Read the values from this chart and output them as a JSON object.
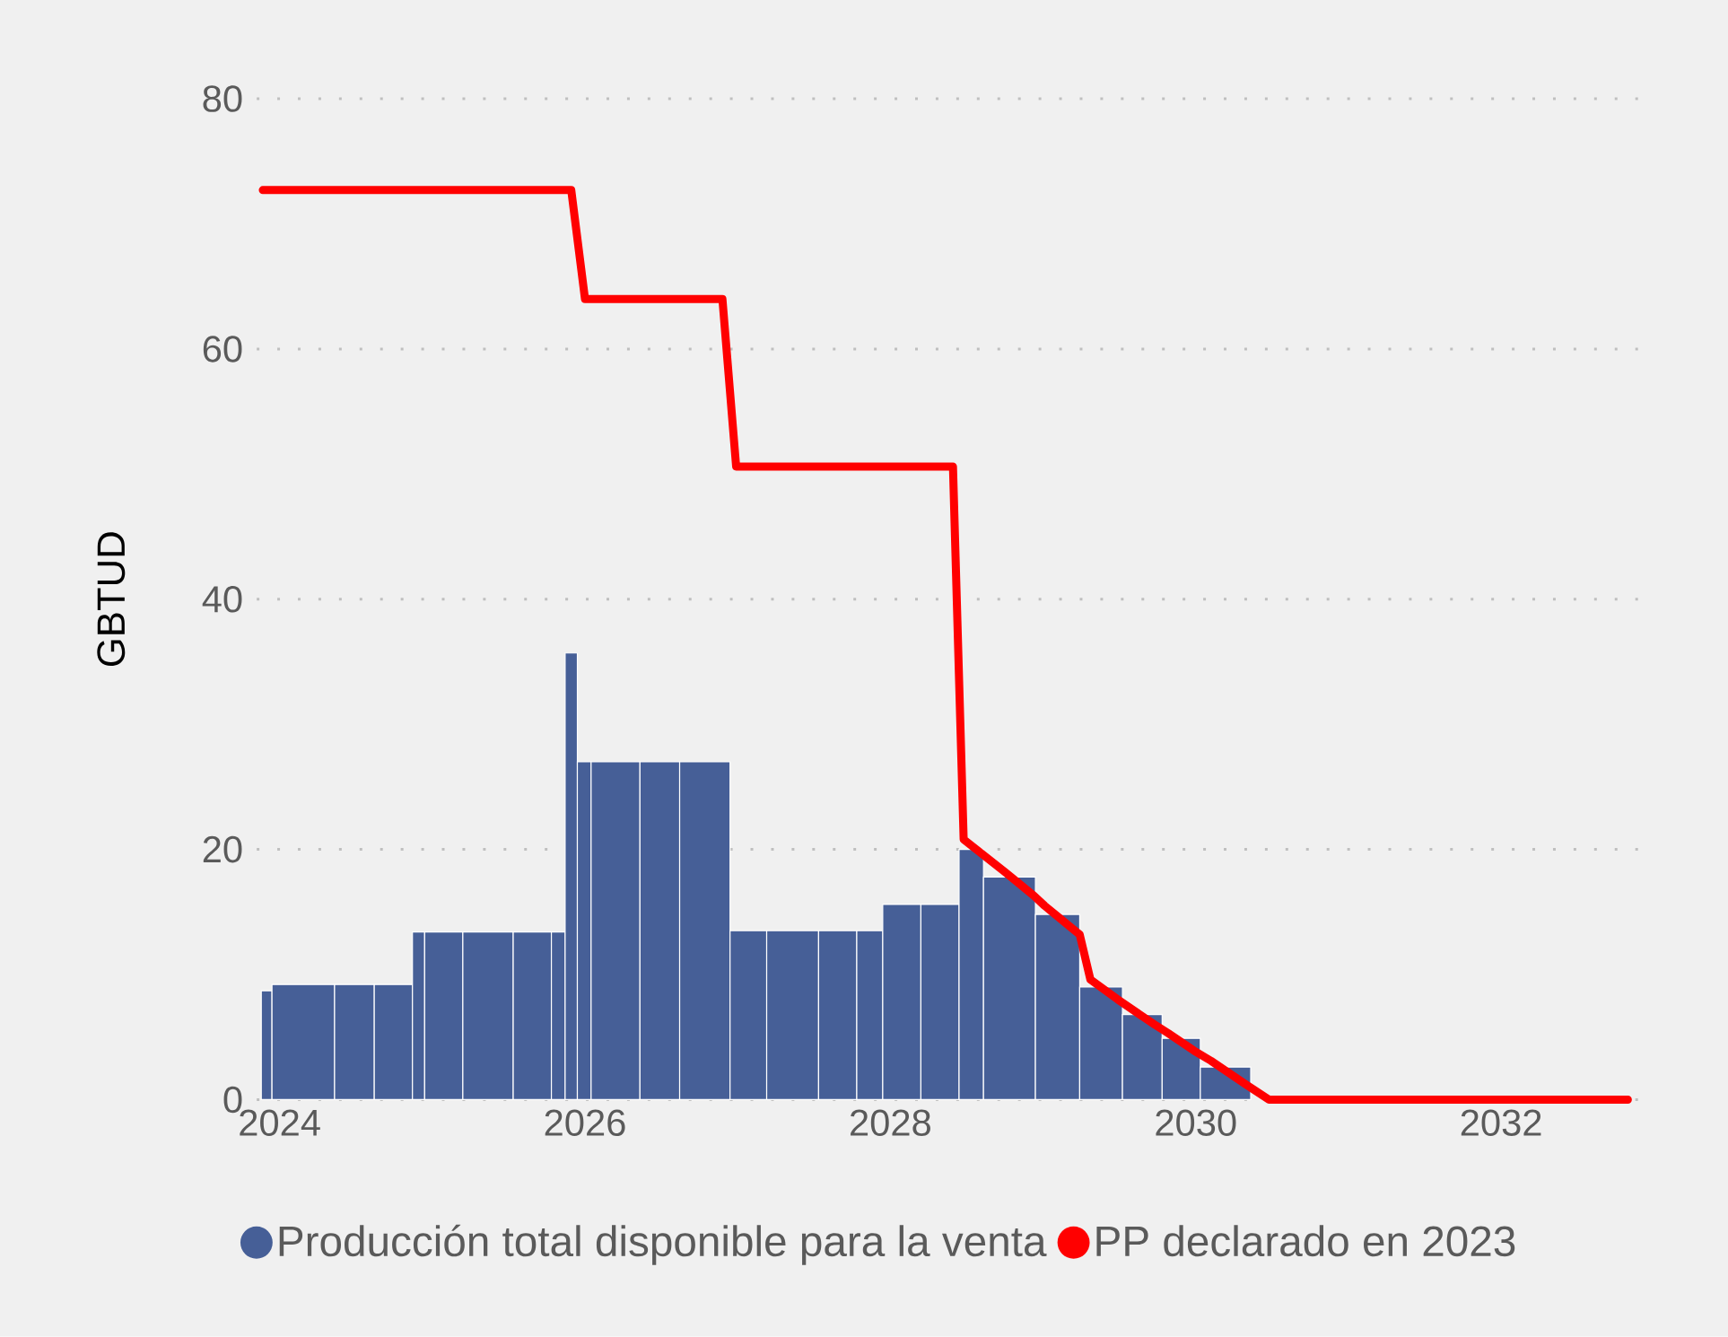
{
  "chart_data": {
    "type": "histogram",
    "ylabel": "GBTUD",
    "xlim": [
      2023.85,
      2032.9
    ],
    "xticks": [
      2024,
      2026,
      2028,
      2030,
      2032
    ],
    "ylim": [
      0,
      80
    ],
    "yticks": [
      0,
      20,
      40,
      60,
      80
    ],
    "grid": "y",
    "legend": "bottom",
    "series": [
      {
        "name": "Producción total disponible para la venta",
        "color": "#465f97",
        "bins": [
          2023.88,
          2023.95,
          2024.36,
          2024.62,
          2024.87,
          2024.95,
          2025.2,
          2025.53,
          2025.78,
          2025.87,
          2025.95,
          2026.04,
          2026.36,
          2026.62,
          2026.95,
          2027.19,
          2027.53,
          2027.78,
          2027.95,
          2028.2,
          2028.45,
          2028.61,
          2028.95,
          2029.24,
          2029.52,
          2029.78,
          2030.03,
          2030.36
        ],
        "values": [
          8.7,
          9.2,
          9.2,
          9.2,
          13.4,
          13.4,
          13.4,
          13.4,
          13.4,
          35.7,
          27,
          27,
          27,
          27,
          13.5,
          13.5,
          13.5,
          13.5,
          15.6,
          15.6,
          20,
          17.8,
          14.8,
          9,
          6.8,
          4.9,
          2.6
        ]
      },
      {
        "type": "line",
        "name": "PP declarado en 2023",
        "color": "#ff0000",
        "x": [
          2023.89,
          2025.91,
          2026.0,
          2026.9,
          2026.99,
          2028.41,
          2028.48,
          2028.75,
          2028.84,
          2028.94,
          2029.01,
          2029.17,
          2029.24,
          2029.31,
          2029.49,
          2029.73,
          2029.82,
          2029.99,
          2030.1,
          2030.33,
          2030.48,
          2032.83
        ],
        "values": [
          72.7,
          72.7,
          64,
          64,
          50.6,
          50.6,
          20.8,
          18.2,
          17.3,
          16.3,
          15.5,
          13.9,
          13.2,
          9.6,
          8,
          6,
          5.3,
          3.9,
          3.1,
          1.2,
          0,
          0
        ]
      }
    ]
  }
}
